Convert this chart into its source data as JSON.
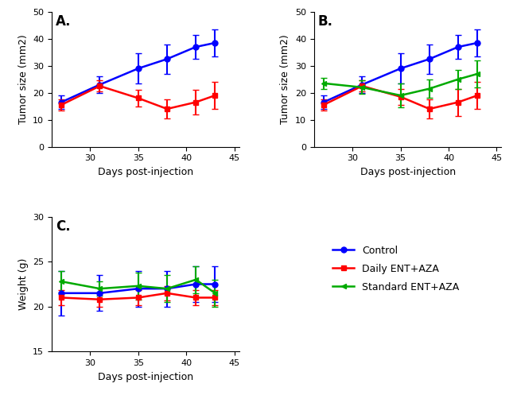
{
  "days": [
    27,
    31,
    35,
    38,
    41,
    43
  ],
  "panelA": {
    "control_mean": [
      16.5,
      23.0,
      29.0,
      32.5,
      37.0,
      38.5
    ],
    "control_err": [
      2.5,
      3.0,
      5.5,
      5.5,
      4.5,
      5.0
    ],
    "daily_mean": [
      15.5,
      22.5,
      18.0,
      14.0,
      16.5,
      19.0
    ],
    "daily_err": [
      2.0,
      2.0,
      3.0,
      3.5,
      4.5,
      5.0
    ]
  },
  "panelB": {
    "control_mean": [
      16.5,
      23.0,
      29.0,
      32.5,
      37.0,
      38.5
    ],
    "control_err": [
      2.5,
      3.0,
      5.5,
      5.5,
      4.5,
      5.0
    ],
    "daily_mean": [
      15.5,
      22.5,
      18.5,
      14.0,
      16.5,
      19.0
    ],
    "daily_err": [
      2.0,
      2.0,
      3.0,
      3.5,
      5.0,
      5.0
    ],
    "standard_mean": [
      23.5,
      22.0,
      19.0,
      21.5,
      25.0,
      27.0
    ],
    "standard_err": [
      2.0,
      2.5,
      4.5,
      3.5,
      3.5,
      5.0
    ]
  },
  "panelC": {
    "control_mean": [
      21.5,
      21.5,
      22.0,
      22.0,
      22.5,
      22.5
    ],
    "control_err": [
      2.5,
      2.0,
      2.0,
      2.0,
      2.0,
      2.0
    ],
    "daily_mean": [
      21.0,
      20.8,
      21.0,
      21.5,
      21.0,
      21.0
    ],
    "daily_err": [
      0.8,
      0.8,
      0.8,
      0.8,
      0.8,
      0.8
    ],
    "standard_mean": [
      22.8,
      22.0,
      22.3,
      22.0,
      23.0,
      21.5
    ],
    "standard_err": [
      1.2,
      0.8,
      1.5,
      1.5,
      1.5,
      1.5
    ]
  },
  "colors": {
    "control": "#0000FF",
    "daily": "#FF0000",
    "standard": "#00AA00"
  },
  "legend_labels": [
    "Control",
    "Daily ENT+AZA",
    "Standard ENT+AZA"
  ],
  "marker_control": "o",
  "marker_daily": "s",
  "marker_standard": "<",
  "ylabel_tumor": "Tumor size (mm2)",
  "ylabel_weight": "Weight (g)",
  "xlabel": "Days post-injection",
  "ylim_tumor": [
    0,
    50
  ],
  "ylim_weight": [
    15,
    30
  ],
  "yticks_tumor": [
    0,
    10,
    20,
    30,
    40,
    50
  ],
  "yticks_weight": [
    15,
    20,
    25,
    30
  ],
  "xticks_labels": [
    30,
    35,
    40,
    45
  ],
  "xlim": [
    26.0,
    45.5
  ]
}
